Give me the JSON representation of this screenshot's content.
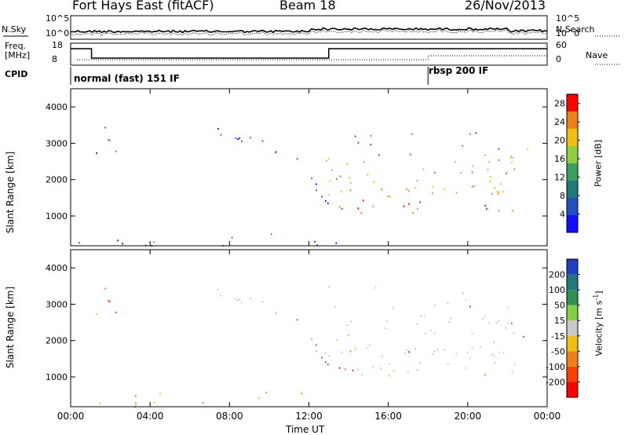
{
  "header": {
    "station": "Fort Hays East (fitACF)",
    "beam": "Beam 18",
    "date": "26/Nov/2013"
  },
  "top_panels": {
    "nsky_label": "N.Sky",
    "nsearch_label": "N.Search",
    "noise_ticks": [
      "10^5",
      "10^0"
    ],
    "freq_label": "Freq.",
    "freq_unit": "[MHz]",
    "freq_ticks": [
      "18",
      "8"
    ],
    "nave_label": "Nave",
    "nave_ticks": [
      "60",
      "0"
    ],
    "cpid_label": "CPID",
    "cpid_modes": [
      {
        "name": "normal (fast) 151 IF",
        "start_hour": 0
      },
      {
        "name": "rbsp 200 IF",
        "start_hour": 18
      }
    ]
  },
  "chart_data": [
    {
      "type": "heatmap",
      "name": "power",
      "ylabel": "Slant Range [km]",
      "xlim": [
        0,
        24
      ],
      "ylim": [
        180,
        4500
      ],
      "yticks": [
        1000,
        2000,
        3000,
        4000
      ],
      "colorbar_label": "Power [dB]",
      "colorbar_ticks": [
        4,
        8,
        12,
        16,
        20,
        24,
        28
      ],
      "colorbar_range": [
        0,
        30
      ],
      "colors": [
        "#1010ff",
        "#2050c0",
        "#207a78",
        "#3aa060",
        "#90d040",
        "#f0c010",
        "#f08010",
        "#ff0000"
      ]
    },
    {
      "type": "heatmap",
      "name": "velocity",
      "ylabel": "Slant Range [km]",
      "xlabel": "Time UT",
      "xlim": [
        0,
        24
      ],
      "ylim": [
        180,
        4500
      ],
      "yticks": [
        1000,
        2000,
        3000,
        4000
      ],
      "xtick_labels": [
        "00:00",
        "04:00",
        "08:00",
        "12:00",
        "16:00",
        "20:00",
        "00:00"
      ],
      "xtick_hours": [
        0,
        4,
        8,
        12,
        16,
        20,
        24
      ],
      "colorbar_label": "Velocity [m s",
      "colorbar_exp": "-1",
      "colorbar_ticks": [
        200,
        100,
        50,
        15,
        -15,
        -50,
        -100,
        -200
      ],
      "colors": [
        "#2040c0",
        "#207a78",
        "#309050",
        "#80d040",
        "#c8c8c8",
        "#f0c010",
        "#f08010",
        "#ff4000",
        "#ff0000"
      ]
    }
  ]
}
